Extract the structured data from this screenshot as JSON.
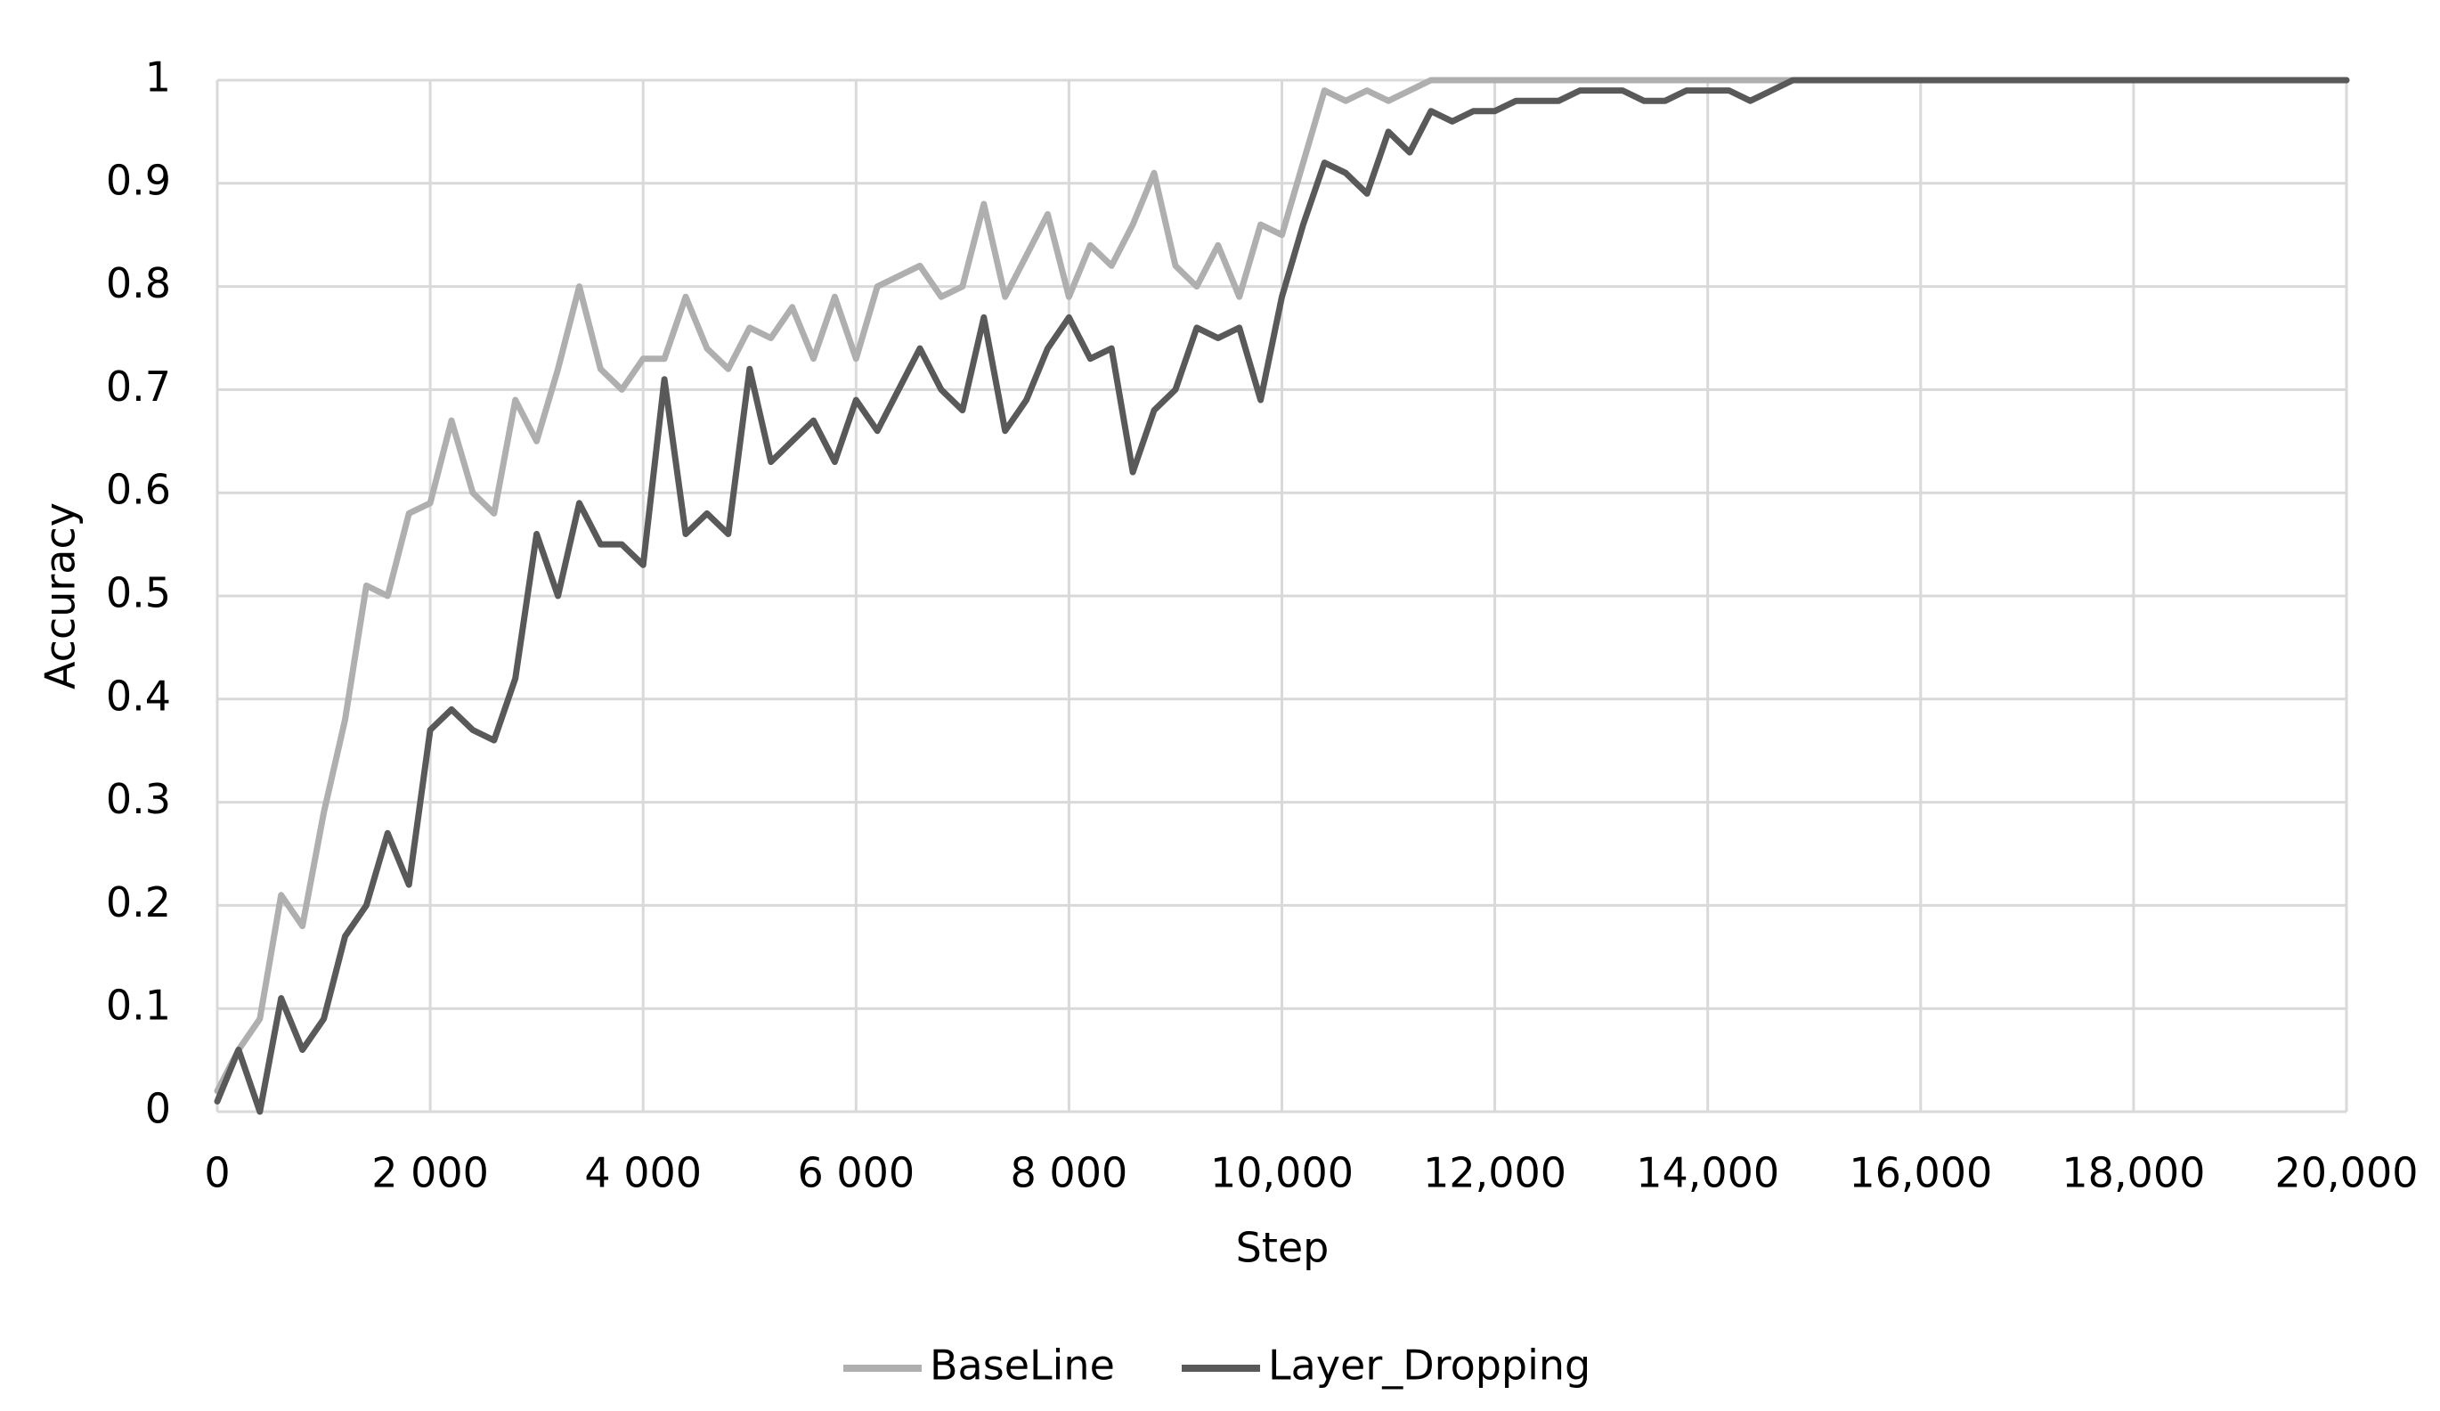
{
  "chart_data": {
    "type": "line",
    "x_label": "Step",
    "y_label": "Accuracy",
    "x": [
      0,
      200,
      400,
      600,
      800,
      1000,
      1200,
      1400,
      1600,
      1800,
      2000,
      2200,
      2400,
      2600,
      2800,
      3000,
      3200,
      3400,
      3600,
      3800,
      4000,
      4200,
      4400,
      4600,
      4800,
      5000,
      5200,
      5400,
      5600,
      5800,
      6000,
      6200,
      6400,
      6600,
      6800,
      7000,
      7200,
      7400,
      7600,
      7800,
      8000,
      8200,
      8400,
      8600,
      8800,
      9000,
      9200,
      9400,
      9600,
      9800,
      10000,
      10200,
      10400,
      10600,
      10800,
      11000,
      11200,
      11400,
      11600,
      11800,
      12000,
      12200,
      12400,
      12600,
      12800,
      13000,
      13200,
      13400,
      13600,
      13800,
      14000,
      14200,
      14400,
      14600,
      14800,
      15000,
      15200,
      15400,
      15600,
      15800,
      16000,
      16200,
      16400,
      16600,
      16800,
      17000,
      17200,
      17400,
      17600,
      17800,
      18000,
      18200,
      18400,
      18600,
      18800,
      19000,
      19200,
      19400,
      19600,
      19800,
      20000
    ],
    "series": [
      {
        "name": "BaseLine",
        "color": "#afafaf",
        "values": [
          0.02,
          0.06,
          0.09,
          0.21,
          0.18,
          0.29,
          0.38,
          0.51,
          0.5,
          0.58,
          0.59,
          0.67,
          0.6,
          0.58,
          0.69,
          0.65,
          0.72,
          0.8,
          0.72,
          0.7,
          0.73,
          0.73,
          0.79,
          0.74,
          0.72,
          0.76,
          0.75,
          0.78,
          0.73,
          0.79,
          0.73,
          0.8,
          0.81,
          0.82,
          0.79,
          0.8,
          0.88,
          0.79,
          0.83,
          0.87,
          0.79,
          0.84,
          0.82,
          0.86,
          0.91,
          0.82,
          0.8,
          0.84,
          0.79,
          0.86,
          0.85,
          0.92,
          0.99,
          0.98,
          0.99,
          0.98,
          0.99,
          1,
          1,
          1,
          1,
          1,
          1,
          1,
          1,
          1,
          1,
          1,
          1,
          1,
          1,
          1,
          1,
          1,
          1,
          1,
          1,
          1,
          1,
          1,
          1,
          1,
          1,
          1,
          1,
          1,
          1,
          1,
          1,
          1,
          1,
          1,
          1,
          1,
          1,
          1,
          1,
          1,
          1,
          1,
          1
        ]
      },
      {
        "name": "Layer_Dropping",
        "color": "#595959",
        "values": [
          0.01,
          0.06,
          0,
          0.11,
          0.06,
          0.09,
          0.17,
          0.2,
          0.27,
          0.22,
          0.37,
          0.39,
          0.37,
          0.36,
          0.42,
          0.56,
          0.5,
          0.59,
          0.55,
          0.55,
          0.53,
          0.71,
          0.56,
          0.58,
          0.56,
          0.72,
          0.63,
          0.65,
          0.67,
          0.63,
          0.69,
          0.66,
          0.7,
          0.74,
          0.7,
          0.68,
          0.77,
          0.66,
          0.69,
          0.74,
          0.77,
          0.73,
          0.74,
          0.62,
          0.68,
          0.7,
          0.76,
          0.75,
          0.76,
          0.69,
          0.79,
          0.86,
          0.92,
          0.91,
          0.89,
          0.95,
          0.93,
          0.97,
          0.96,
          0.97,
          0.97,
          0.98,
          0.98,
          0.98,
          0.99,
          0.99,
          0.99,
          0.98,
          0.98,
          0.99,
          0.99,
          0.99,
          0.98,
          0.99,
          1,
          1,
          1,
          1,
          1,
          1,
          1,
          1,
          1,
          1,
          1,
          1,
          1,
          1,
          1,
          1,
          1,
          1,
          1,
          1,
          1,
          1,
          1,
          1,
          1,
          1,
          1
        ]
      }
    ],
    "xlim": [
      0,
      20000
    ],
    "xticks": [
      0,
      {
        "value": 2000,
        "label": "2 000"
      },
      {
        "value": 4000,
        "label": "4 000"
      },
      {
        "value": 6000,
        "label": "6 000"
      },
      {
        "value": 8000,
        "label": "8 000"
      },
      {
        "value": 10000,
        "label": "10,000"
      },
      {
        "value": 12000,
        "label": "12,000"
      },
      {
        "value": 14000,
        "label": "14,000"
      },
      {
        "value": 16000,
        "label": "16,000"
      },
      {
        "value": 18000,
        "label": "18,000"
      },
      {
        "value": 20000,
        "label": "20,000"
      }
    ],
    "ylim": [
      0,
      1
    ],
    "yticks": [
      0,
      0.1,
      0.2,
      0.3,
      0.4,
      0.5,
      0.6,
      0.7,
      0.8,
      0.9,
      1
    ],
    "grid": true,
    "legend": "bottom"
  }
}
